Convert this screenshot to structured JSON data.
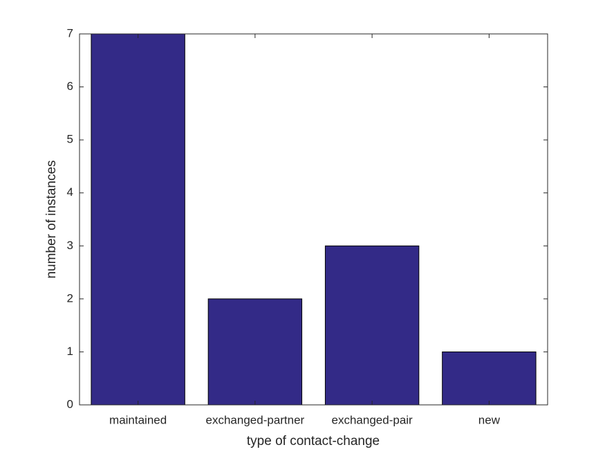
{
  "chart_data": {
    "type": "bar",
    "xlabel": "type of contact-change",
    "ylabel": "number of instances",
    "categories": [
      "maintained",
      "exchanged-partner",
      "exchanged-pair",
      "new"
    ],
    "values": [
      7,
      2,
      3,
      1
    ],
    "color": "#332a87",
    "ylim": [
      0,
      7
    ],
    "yticks": [
      0,
      1,
      2,
      3,
      4,
      5,
      6,
      7
    ],
    "grid": false
  }
}
